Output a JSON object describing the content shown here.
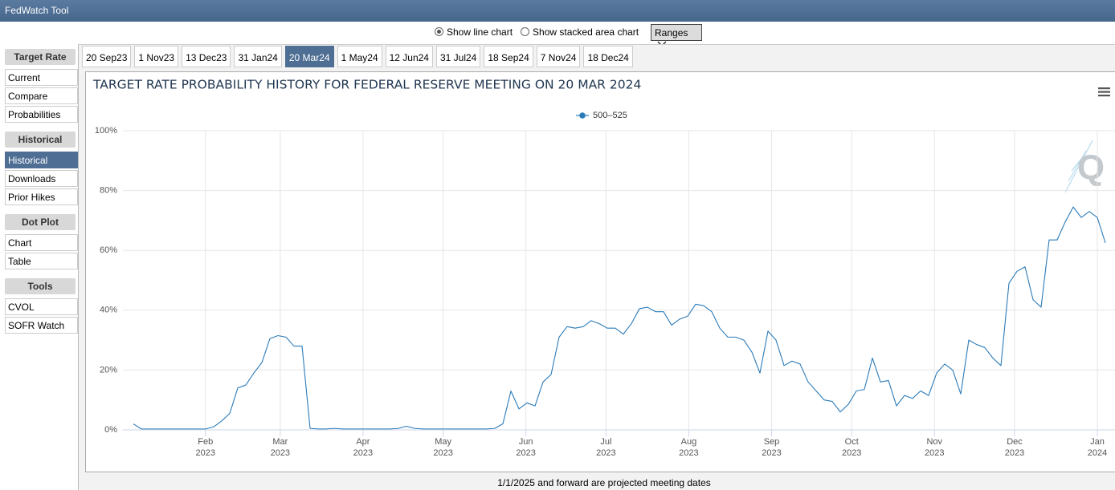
{
  "header": {
    "title": "FedWatch Tool"
  },
  "controls": {
    "options": [
      {
        "label": "Show line chart",
        "selected": true
      },
      {
        "label": "Show stacked area chart",
        "selected": false
      }
    ],
    "ranges": "Ranges"
  },
  "sidebar": [
    {
      "title": "Target Rate",
      "items": [
        "Current",
        "Compare",
        "Probabilities"
      ]
    },
    {
      "title": "Historical",
      "items": [
        "Historical",
        "Downloads",
        "Prior Hikes"
      ],
      "active": 0
    },
    {
      "title": "Dot Plot",
      "items": [
        "Chart",
        "Table"
      ]
    },
    {
      "title": "Tools",
      "items": [
        "CVOL",
        "SOFR Watch"
      ]
    }
  ],
  "tabs": {
    "items": [
      "20 Sep23",
      "1 Nov23",
      "13 Dec23",
      "31 Jan24",
      "20 Mar24",
      "1 May24",
      "12 Jun24",
      "31 Jul24",
      "18 Sep24",
      "7 Nov24",
      "18 Dec24"
    ],
    "active": 4
  },
  "chart_data": {
    "type": "line",
    "title": "TARGET RATE PROBABILITY HISTORY FOR FEDERAL RESERVE MEETING ON 20 MAR 2024",
    "logo": "Q",
    "series": [
      {
        "name": "500–525",
        "color": "#2b7bb9",
        "values": [
          2,
          0.3,
          0.3,
          0.3,
          0.3,
          0.3,
          0.3,
          0.3,
          0.3,
          0.3,
          1,
          3,
          5.5,
          14,
          15,
          19,
          22.5,
          30.5,
          31.5,
          31,
          28,
          28,
          0.5,
          0.3,
          0.3,
          0.5,
          0.3,
          0.3,
          0.3,
          0.3,
          0.3,
          0.3,
          0.3,
          0.5,
          1.2,
          0.5,
          0.3,
          0.3,
          0.3,
          0.3,
          0.3,
          0.3,
          0.3,
          0.3,
          0.3,
          0.5,
          2,
          13,
          7,
          9,
          8,
          16,
          18.5,
          31,
          34.5,
          34,
          34.5,
          36.5,
          35.5,
          34,
          34,
          32,
          35.5,
          40.5,
          41,
          39.5,
          39.5,
          35,
          37,
          38,
          42,
          41.5,
          39.5,
          34,
          31,
          31,
          30,
          26,
          19,
          33,
          30,
          21.5,
          23,
          22,
          16,
          13,
          10,
          9.5,
          6,
          8.5,
          13,
          13.5,
          24,
          16,
          16.5,
          8,
          11.5,
          10.5,
          13,
          11.5,
          19,
          22,
          20,
          12,
          30,
          28.5,
          27.5,
          24,
          21.5,
          49,
          53,
          54.5,
          43.5,
          41,
          63.5,
          63.5,
          69.5,
          74.5,
          71,
          73,
          71,
          62.5
        ]
      }
    ],
    "xlim": [
      "2023-01-05",
      "2024-01-04"
    ],
    "xticks": [
      {
        "value": "2023-02",
        "label": [
          "Feb",
          "2023"
        ]
      },
      {
        "value": "2023-03",
        "label": [
          "Mar",
          "2023"
        ]
      },
      {
        "value": "2023-04",
        "label": [
          "Apr",
          "2023"
        ]
      },
      {
        "value": "2023-05",
        "label": [
          "May",
          "2023"
        ]
      },
      {
        "value": "2023-06",
        "label": [
          "Jun",
          "2023"
        ]
      },
      {
        "value": "2023-07",
        "label": [
          "Jul",
          "2023"
        ]
      },
      {
        "value": "2023-08",
        "label": [
          "Aug",
          "2023"
        ]
      },
      {
        "value": "2023-09",
        "label": [
          "Sep",
          "2023"
        ]
      },
      {
        "value": "2023-10",
        "label": [
          "Oct",
          "2023"
        ]
      },
      {
        "value": "2023-11",
        "label": [
          "Nov",
          "2023"
        ]
      },
      {
        "value": "2023-12",
        "label": [
          "Dec",
          "2023"
        ]
      },
      {
        "value": "2024-01",
        "label": [
          "Jan",
          "2024"
        ]
      }
    ],
    "ylim": [
      0,
      100
    ],
    "yticks": [
      {
        "value": 0,
        "label": "0%"
      },
      {
        "value": 20,
        "label": "20%"
      },
      {
        "value": 40,
        "label": "40%"
      },
      {
        "value": 60,
        "label": "60%"
      },
      {
        "value": 80,
        "label": "80%"
      },
      {
        "value": 100,
        "label": "100%"
      }
    ],
    "grid": true
  },
  "footer": "1/1/2025 and forward are projected meeting dates"
}
